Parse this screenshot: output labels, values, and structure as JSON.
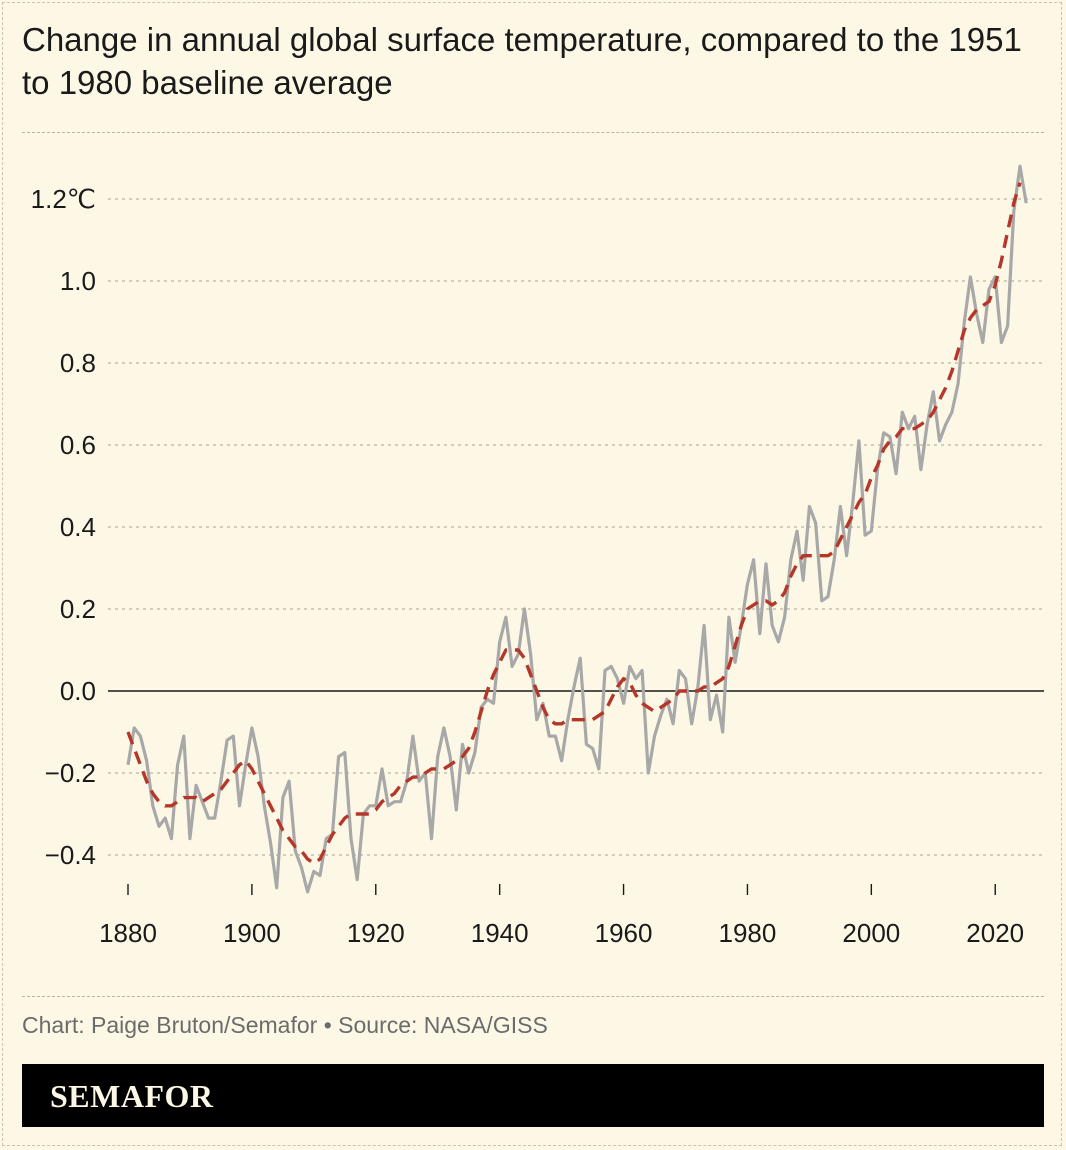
{
  "title": "Change in annual global surface temperature, compared to the 1951 to 1980 baseline average",
  "credit": "Chart: Paige Bruton/Semafor • Source: NASA/GISS",
  "logo": "SEMAFOR",
  "colors": {
    "background": "#fdf8e6",
    "annual_line": "#a8a8a8",
    "smoothed_line": "#b5372a",
    "zero_line": "#1a1a1a",
    "grid": "#b9b4a0"
  },
  "chart_data": {
    "type": "line",
    "title": "Change in annual global surface temperature, compared to the 1951 to 1980 baseline average",
    "xlabel": "",
    "ylabel": "",
    "xlim": [
      1880,
      2024
    ],
    "ylim": [
      -0.48,
      1.28
    ],
    "x_ticks": [
      1880,
      1900,
      1920,
      1940,
      1960,
      1980,
      2000,
      2020
    ],
    "x_tick_labels": [
      "1880",
      "1900",
      "1920",
      "1940",
      "1960",
      "1980",
      "2000",
      "2020"
    ],
    "y_ticks": [
      -0.4,
      -0.2,
      0.0,
      0.2,
      0.4,
      0.6,
      0.8,
      1.0,
      1.2
    ],
    "y_tick_labels": [
      "−0.4",
      "−0.2",
      "0.0",
      "0.2",
      "0.4",
      "0.6",
      "0.8",
      "1.0",
      "1.2℃"
    ],
    "grid": true,
    "legend": "none",
    "series": [
      {
        "style": "solid-gray",
        "x_start": 1880,
        "values": [
          -0.18,
          -0.09,
          -0.11,
          -0.17,
          -0.28,
          -0.33,
          -0.31,
          -0.36,
          -0.18,
          -0.11,
          -0.36,
          -0.23,
          -0.27,
          -0.31,
          -0.31,
          -0.22,
          -0.12,
          -0.11,
          -0.28,
          -0.18,
          -0.09,
          -0.16,
          -0.28,
          -0.37,
          -0.48,
          -0.26,
          -0.22,
          -0.39,
          -0.43,
          -0.49,
          -0.44,
          -0.45,
          -0.36,
          -0.35,
          -0.16,
          -0.15,
          -0.36,
          -0.46,
          -0.3,
          -0.28,
          -0.28,
          -0.19,
          -0.28,
          -0.27,
          -0.27,
          -0.22,
          -0.11,
          -0.22,
          -0.2,
          -0.36,
          -0.16,
          -0.09,
          -0.16,
          -0.29,
          -0.13,
          -0.2,
          -0.15,
          -0.04,
          -0.02,
          -0.03,
          0.12,
          0.18,
          0.06,
          0.09,
          0.2,
          0.09,
          -0.07,
          -0.03,
          -0.11,
          -0.11,
          -0.17,
          -0.07,
          0.01,
          0.08,
          -0.13,
          -0.14,
          -0.19,
          0.05,
          0.06,
          0.03,
          -0.03,
          0.06,
          0.03,
          0.05,
          -0.2,
          -0.11,
          -0.06,
          -0.02,
          -0.08,
          0.05,
          0.03,
          -0.08,
          0.01,
          0.16,
          -0.07,
          -0.01,
          -0.1,
          0.18,
          0.07,
          0.16,
          0.26,
          0.32,
          0.14,
          0.31,
          0.16,
          0.12,
          0.18,
          0.32,
          0.39,
          0.27,
          0.45,
          0.41,
          0.22,
          0.23,
          0.32,
          0.45,
          0.33,
          0.46,
          0.61,
          0.38,
          0.39,
          0.54,
          0.63,
          0.62,
          0.53,
          0.68,
          0.64,
          0.67,
          0.54,
          0.65,
          0.73,
          0.61,
          0.65,
          0.68,
          0.75,
          0.9,
          1.01,
          0.92,
          0.85,
          0.98,
          1.01,
          0.85,
          0.89,
          1.17,
          1.28,
          1.19
        ]
      },
      {
        "style": "dashed-red",
        "x_start": 1880,
        "values": [
          -0.1,
          -0.14,
          -0.18,
          -0.22,
          -0.25,
          -0.27,
          -0.28,
          -0.28,
          -0.27,
          -0.26,
          -0.26,
          -0.26,
          -0.27,
          -0.26,
          -0.25,
          -0.24,
          -0.22,
          -0.2,
          -0.18,
          -0.17,
          -0.19,
          -0.22,
          -0.25,
          -0.28,
          -0.31,
          -0.34,
          -0.36,
          -0.38,
          -0.39,
          -0.41,
          -0.42,
          -0.41,
          -0.38,
          -0.35,
          -0.33,
          -0.31,
          -0.3,
          -0.3,
          -0.3,
          -0.3,
          -0.29,
          -0.27,
          -0.26,
          -0.25,
          -0.23,
          -0.22,
          -0.21,
          -0.21,
          -0.2,
          -0.19,
          -0.19,
          -0.19,
          -0.18,
          -0.17,
          -0.16,
          -0.14,
          -0.1,
          -0.05,
          0.0,
          0.04,
          0.07,
          0.1,
          0.1,
          0.1,
          0.08,
          0.04,
          0.0,
          -0.04,
          -0.07,
          -0.08,
          -0.08,
          -0.07,
          -0.07,
          -0.07,
          -0.07,
          -0.07,
          -0.06,
          -0.05,
          -0.02,
          0.01,
          0.03,
          0.02,
          -0.01,
          -0.03,
          -0.04,
          -0.05,
          -0.04,
          -0.03,
          -0.02,
          0.0,
          0.0,
          0.0,
          0.0,
          0.01,
          0.01,
          0.02,
          0.03,
          0.06,
          0.11,
          0.16,
          0.2,
          0.21,
          0.22,
          0.22,
          0.21,
          0.22,
          0.24,
          0.28,
          0.31,
          0.33,
          0.33,
          0.33,
          0.33,
          0.33,
          0.34,
          0.37,
          0.4,
          0.43,
          0.46,
          0.48,
          0.52,
          0.55,
          0.59,
          0.61,
          0.62,
          0.64,
          0.64,
          0.64,
          0.65,
          0.66,
          0.68,
          0.71,
          0.74,
          0.78,
          0.83,
          0.88,
          0.91,
          0.93,
          0.94,
          0.95,
          0.99,
          1.05,
          1.12,
          1.19,
          1.24
        ]
      }
    ]
  }
}
